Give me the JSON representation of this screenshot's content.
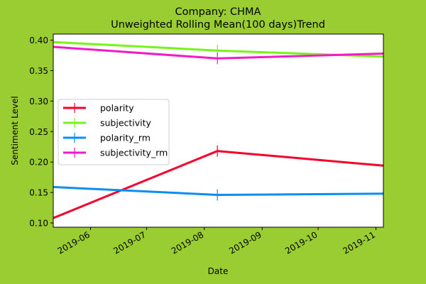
{
  "chart_data": {
    "type": "line",
    "title": "Company: CHMA",
    "subtitle": "Unweighted Rolling Mean(100 days)Trend",
    "xlabel": "Date",
    "ylabel": "Sentiment Level",
    "xlim": [
      "2019-05-12",
      "2019-11-05"
    ],
    "ylim": [
      0.093,
      0.41
    ],
    "x_ticks": [
      "2019-06",
      "2019-07",
      "2019-08",
      "2019-09",
      "2019-10",
      "2019-11"
    ],
    "y_ticks": [
      0.1,
      0.15,
      0.2,
      0.25,
      0.3,
      0.35,
      0.4
    ],
    "x": [
      "2019-05-12",
      "2019-08-08",
      "2019-11-05"
    ],
    "marker_index": 1,
    "grid": false,
    "legend_position": "center-left",
    "series": [
      {
        "name": "polarity",
        "color": "#f5002a",
        "values": [
          0.108,
          0.218,
          0.194
        ]
      },
      {
        "name": "subjectivity",
        "color": "#76f51a",
        "values": [
          0.397,
          0.383,
          0.373
        ]
      },
      {
        "name": "polarity_rm",
        "color": "#0a8ef0",
        "values": [
          0.159,
          0.146,
          0.148
        ]
      },
      {
        "name": "subjectivity_rm",
        "color": "#f21bc8",
        "values": [
          0.389,
          0.37,
          0.378
        ]
      }
    ]
  }
}
